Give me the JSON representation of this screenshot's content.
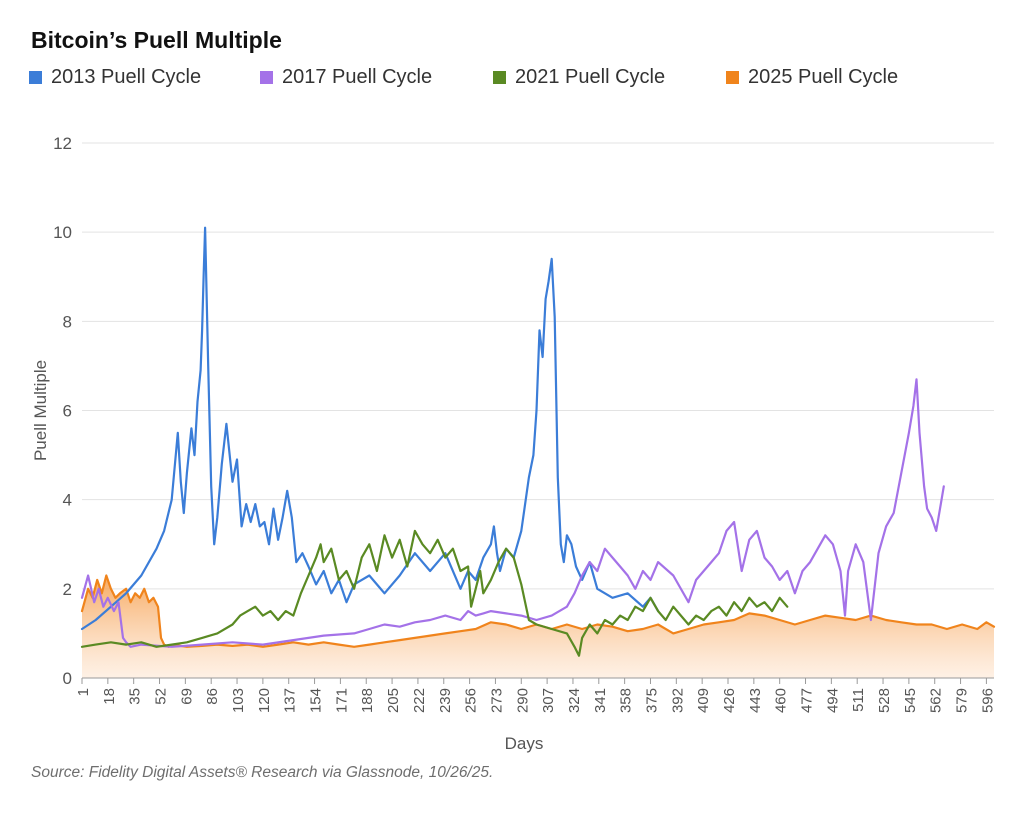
{
  "title": "Bitcoin’s Puell Multiple",
  "source": "Source: Fidelity Digital Assets® Research via Glassnode, 10/26/25.",
  "chart_data": {
    "type": "line",
    "title": "Bitcoin’s Puell Multiple",
    "xlabel": "Days",
    "ylabel": "Puell Multiple",
    "xlim": [
      1,
      601
    ],
    "ylim": [
      0,
      12
    ],
    "yticks": [
      0,
      2,
      4,
      6,
      8,
      10,
      12
    ],
    "xticks": [
      1,
      18,
      35,
      52,
      69,
      86,
      103,
      120,
      137,
      154,
      171,
      188,
      205,
      222,
      239,
      256,
      273,
      290,
      307,
      324,
      341,
      358,
      375,
      392,
      409,
      426,
      443,
      460,
      477,
      494,
      511,
      528,
      545,
      562,
      579,
      596
    ],
    "grid": "horizontal",
    "legend_position": "top",
    "series": [
      {
        "name": "2013 Puell Cycle",
        "color": "#3b7dd8",
        "style": "line",
        "x": [
          1,
          10,
          20,
          30,
          40,
          50,
          55,
          60,
          64,
          66,
          68,
          70,
          73,
          75,
          77,
          79,
          80,
          81,
          82,
          84,
          86,
          88,
          90,
          93,
          96,
          100,
          103,
          106,
          109,
          112,
          115,
          118,
          121,
          124,
          127,
          130,
          133,
          136,
          139,
          142,
          146,
          150,
          155,
          160,
          165,
          170,
          175,
          180,
          190,
          200,
          210,
          220,
          230,
          240,
          250,
          255,
          260,
          265,
          270,
          272,
          274,
          276,
          280,
          285,
          290,
          295,
          298,
          300,
          302,
          304,
          306,
          308,
          310,
          312,
          314,
          316,
          318,
          320,
          323,
          326,
          330,
          335,
          340,
          350,
          360,
          370,
          375,
          380
        ],
        "y": [
          1.1,
          1.3,
          1.6,
          1.9,
          2.3,
          2.9,
          3.3,
          4.0,
          5.5,
          4.4,
          3.7,
          4.6,
          5.6,
          5.0,
          6.2,
          6.9,
          7.8,
          9.0,
          10.1,
          7.0,
          4.3,
          3.0,
          3.6,
          4.8,
          5.7,
          4.4,
          4.9,
          3.4,
          3.9,
          3.5,
          3.9,
          3.4,
          3.5,
          3.0,
          3.8,
          3.1,
          3.6,
          4.2,
          3.6,
          2.6,
          2.8,
          2.5,
          2.1,
          2.4,
          1.9,
          2.2,
          1.7,
          2.1,
          2.3,
          1.9,
          2.3,
          2.8,
          2.4,
          2.8,
          2.0,
          2.4,
          2.2,
          2.7,
          3.0,
          3.4,
          2.8,
          2.4,
          2.9,
          2.7,
          3.3,
          4.5,
          5.0,
          6.0,
          7.8,
          7.2,
          8.5,
          8.9,
          9.4,
          8.1,
          4.5,
          3.0,
          2.6,
          3.2,
          3.0,
          2.5,
          2.2,
          2.6,
          2.0,
          1.8,
          1.9,
          1.6,
          1.8,
          1.5
        ]
      },
      {
        "name": "2017 Puell Cycle",
        "color": "#a472e8",
        "style": "line",
        "x": [
          1,
          5,
          9,
          12,
          15,
          18,
          22,
          25,
          28,
          30,
          33,
          40,
          60,
          80,
          100,
          120,
          140,
          160,
          180,
          190,
          200,
          210,
          220,
          230,
          240,
          250,
          255,
          260,
          265,
          270,
          280,
          290,
          300,
          310,
          320,
          325,
          330,
          335,
          340,
          345,
          350,
          355,
          360,
          365,
          370,
          375,
          380,
          390,
          400,
          405,
          410,
          415,
          420,
          425,
          430,
          435,
          440,
          445,
          450,
          455,
          460,
          465,
          470,
          475,
          480,
          485,
          490,
          495,
          500,
          503,
          505,
          510,
          515,
          520,
          525,
          530,
          535,
          540,
          545,
          548,
          550,
          552,
          555,
          557,
          560,
          563,
          566,
          568
        ],
        "y": [
          1.8,
          2.3,
          1.7,
          2.0,
          1.6,
          1.8,
          1.5,
          1.7,
          0.9,
          0.8,
          0.7,
          0.75,
          0.7,
          0.75,
          0.8,
          0.75,
          0.85,
          0.95,
          1.0,
          1.1,
          1.2,
          1.15,
          1.25,
          1.3,
          1.4,
          1.3,
          1.5,
          1.4,
          1.45,
          1.5,
          1.45,
          1.4,
          1.3,
          1.4,
          1.6,
          1.9,
          2.3,
          2.6,
          2.4,
          2.9,
          2.7,
          2.5,
          2.3,
          2.0,
          2.4,
          2.2,
          2.6,
          2.3,
          1.7,
          2.2,
          2.4,
          2.6,
          2.8,
          3.3,
          3.5,
          2.4,
          3.1,
          3.3,
          2.7,
          2.5,
          2.2,
          2.4,
          1.9,
          2.4,
          2.6,
          2.9,
          3.2,
          3.0,
          2.4,
          1.4,
          2.4,
          3.0,
          2.6,
          1.3,
          2.8,
          3.4,
          3.7,
          4.6,
          5.5,
          6.1,
          6.7,
          5.5,
          4.3,
          3.8,
          3.6,
          3.3,
          3.9,
          4.3
        ]
      },
      {
        "name": "2021 Puell Cycle",
        "color": "#5a8a23",
        "style": "line",
        "x": [
          1,
          10,
          20,
          30,
          40,
          50,
          60,
          70,
          80,
          90,
          100,
          105,
          110,
          115,
          120,
          125,
          130,
          135,
          140,
          145,
          150,
          155,
          158,
          160,
          165,
          170,
          175,
          180,
          185,
          190,
          195,
          200,
          205,
          210,
          215,
          220,
          225,
          230,
          235,
          240,
          245,
          250,
          255,
          257,
          260,
          263,
          265,
          270,
          275,
          280,
          285,
          290,
          295,
          300,
          310,
          320,
          325,
          328,
          330,
          335,
          340,
          345,
          350,
          355,
          360,
          365,
          370,
          375,
          380,
          385,
          390,
          395,
          400,
          405,
          410,
          415,
          420,
          425,
          430,
          435,
          440,
          445,
          450,
          455,
          460,
          465
        ],
        "y": [
          0.7,
          0.75,
          0.8,
          0.75,
          0.8,
          0.7,
          0.75,
          0.8,
          0.9,
          1.0,
          1.2,
          1.4,
          1.5,
          1.6,
          1.4,
          1.5,
          1.3,
          1.5,
          1.4,
          1.9,
          2.3,
          2.7,
          3.0,
          2.6,
          2.9,
          2.2,
          2.4,
          2.0,
          2.7,
          3.0,
          2.4,
          3.2,
          2.7,
          3.1,
          2.5,
          3.3,
          3.0,
          2.8,
          3.1,
          2.7,
          2.9,
          2.4,
          2.5,
          1.6,
          2.0,
          2.4,
          1.9,
          2.2,
          2.6,
          2.9,
          2.7,
          2.1,
          1.3,
          1.2,
          1.1,
          1.0,
          0.7,
          0.5,
          0.9,
          1.2,
          1.0,
          1.3,
          1.2,
          1.4,
          1.3,
          1.6,
          1.5,
          1.8,
          1.5,
          1.3,
          1.6,
          1.4,
          1.2,
          1.4,
          1.3,
          1.5,
          1.6,
          1.4,
          1.7,
          1.5,
          1.8,
          1.6,
          1.7,
          1.5,
          1.8,
          1.6
        ]
      },
      {
        "name": "2025 Puell Cycle",
        "color": "#f0841c",
        "style": "area",
        "x": [
          1,
          5,
          8,
          11,
          14,
          17,
          20,
          23,
          26,
          30,
          33,
          36,
          39,
          42,
          45,
          48,
          51,
          53,
          55,
          58,
          60,
          70,
          80,
          90,
          100,
          110,
          120,
          130,
          140,
          150,
          160,
          170,
          180,
          190,
          200,
          210,
          220,
          230,
          240,
          250,
          260,
          270,
          280,
          290,
          300,
          310,
          320,
          330,
          340,
          350,
          360,
          370,
          380,
          390,
          400,
          410,
          420,
          430,
          440,
          450,
          460,
          470,
          480,
          490,
          500,
          510,
          520,
          530,
          540,
          550,
          560,
          570,
          580,
          590,
          596,
          601
        ],
        "y": [
          1.5,
          2.0,
          1.8,
          2.2,
          1.9,
          2.3,
          2.0,
          1.8,
          1.9,
          2.0,
          1.7,
          1.9,
          1.8,
          2.0,
          1.7,
          1.8,
          1.6,
          0.9,
          0.75,
          0.7,
          0.75,
          0.7,
          0.72,
          0.75,
          0.72,
          0.75,
          0.7,
          0.75,
          0.8,
          0.75,
          0.8,
          0.75,
          0.7,
          0.75,
          0.8,
          0.85,
          0.9,
          0.95,
          1.0,
          1.05,
          1.1,
          1.25,
          1.2,
          1.1,
          1.2,
          1.1,
          1.2,
          1.1,
          1.2,
          1.15,
          1.05,
          1.1,
          1.2,
          1.0,
          1.1,
          1.2,
          1.25,
          1.3,
          1.45,
          1.4,
          1.3,
          1.2,
          1.3,
          1.4,
          1.35,
          1.3,
          1.4,
          1.3,
          1.25,
          1.2,
          1.2,
          1.1,
          1.2,
          1.1,
          1.25,
          1.15
        ]
      }
    ]
  }
}
